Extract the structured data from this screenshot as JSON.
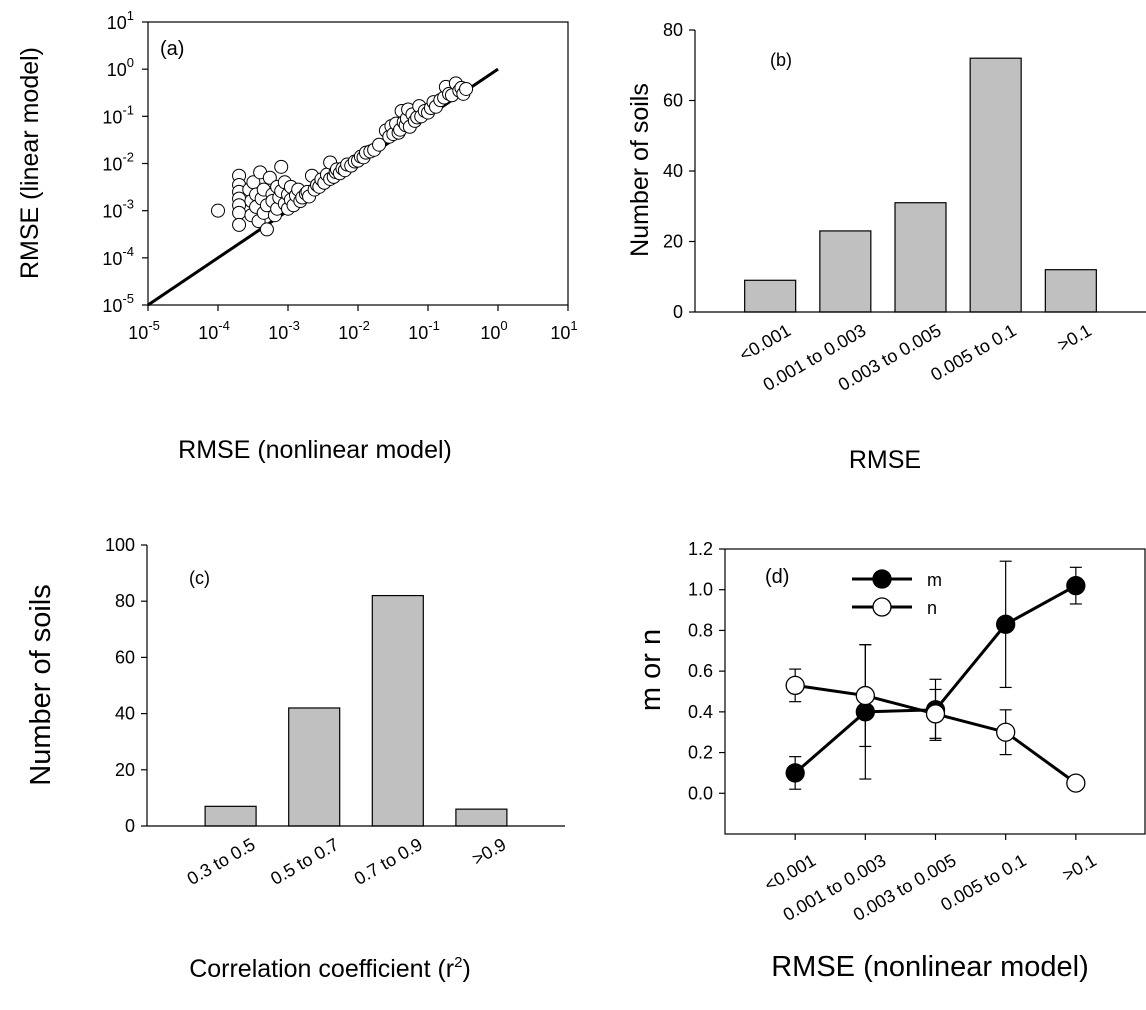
{
  "figure": {
    "panels": [
      "(a)",
      "(b)",
      "(c)",
      "(d)"
    ]
  },
  "chart_data": [
    {
      "id": "a",
      "type": "scatter",
      "panel_label": "(a)",
      "xlabel": "RMSE (nonlinear model)",
      "ylabel": "RMSE (linear model)",
      "x_scale": "log",
      "y_scale": "log",
      "xlim": [
        1e-05,
        10
      ],
      "ylim": [
        1e-05,
        10
      ],
      "tick_mantissa": "10",
      "tick_exponents": [
        "-5",
        "-4",
        "-3",
        "-2",
        "-1",
        "0",
        "1"
      ],
      "reference_line": {
        "from": [
          1e-05,
          1e-05
        ],
        "to": [
          1,
          1
        ]
      },
      "marker": "open-circle",
      "points": [
        [
          0.0001,
          0.001
        ],
        [
          0.0002,
          0.0055
        ],
        [
          0.0002,
          0.0035
        ],
        [
          0.0002,
          0.0025
        ],
        [
          0.0002,
          0.0018
        ],
        [
          0.0002,
          0.0013
        ],
        [
          0.0002,
          0.0009
        ],
        [
          0.0002,
          0.0005
        ],
        [
          0.00028,
          0.0028
        ],
        [
          0.0003,
          0.0016
        ],
        [
          0.0003,
          0.0008
        ],
        [
          0.00032,
          0.004
        ],
        [
          0.00035,
          0.0022
        ],
        [
          0.00035,
          0.0012
        ],
        [
          0.00038,
          0.0006
        ],
        [
          0.0004,
          0.0065
        ],
        [
          0.00042,
          0.0018
        ],
        [
          0.00045,
          0.0028
        ],
        [
          0.00045,
          0.0009
        ],
        [
          0.0005,
          0.0004
        ],
        [
          0.0005,
          0.0013
        ],
        [
          0.00055,
          0.005
        ],
        [
          0.0006,
          0.0022
        ],
        [
          0.0006,
          0.0016
        ],
        [
          0.00065,
          0.0008
        ],
        [
          0.0007,
          0.0032
        ],
        [
          0.0007,
          0.0011
        ],
        [
          0.00075,
          0.0019
        ],
        [
          0.0008,
          0.0085
        ],
        [
          0.0008,
          0.0026
        ],
        [
          0.0009,
          0.0014
        ],
        [
          0.0009,
          0.004
        ],
        [
          0.001,
          0.0011
        ],
        [
          0.001,
          0.0022
        ],
        [
          0.0011,
          0.0017
        ],
        [
          0.0011,
          0.0032
        ],
        [
          0.0012,
          0.0013
        ],
        [
          0.0013,
          0.0021
        ],
        [
          0.0014,
          0.0028
        ],
        [
          0.0015,
          0.0016
        ],
        [
          0.0016,
          0.0019
        ],
        [
          0.0018,
          0.0023
        ],
        [
          0.0019,
          0.0025
        ],
        [
          0.002,
          0.002
        ],
        [
          0.0022,
          0.0055
        ],
        [
          0.0024,
          0.0028
        ],
        [
          0.0026,
          0.0035
        ],
        [
          0.0028,
          0.0032
        ],
        [
          0.003,
          0.0046
        ],
        [
          0.0033,
          0.0039
        ],
        [
          0.0036,
          0.0058
        ],
        [
          0.004,
          0.0105
        ],
        [
          0.004,
          0.0047
        ],
        [
          0.0045,
          0.0052
        ],
        [
          0.0048,
          0.0066
        ],
        [
          0.005,
          0.0075
        ],
        [
          0.0055,
          0.0062
        ],
        [
          0.006,
          0.0078
        ],
        [
          0.0065,
          0.0072
        ],
        [
          0.007,
          0.0095
        ],
        [
          0.008,
          0.009
        ],
        [
          0.009,
          0.011
        ],
        [
          0.01,
          0.0115
        ],
        [
          0.011,
          0.014
        ],
        [
          0.012,
          0.0135
        ],
        [
          0.013,
          0.017
        ],
        [
          0.015,
          0.018
        ],
        [
          0.017,
          0.0195
        ],
        [
          0.02,
          0.025
        ],
        [
          0.025,
          0.05
        ],
        [
          0.028,
          0.037
        ],
        [
          0.03,
          0.062
        ],
        [
          0.032,
          0.042
        ],
        [
          0.035,
          0.07
        ],
        [
          0.038,
          0.045
        ],
        [
          0.04,
          0.052
        ],
        [
          0.042,
          0.13
        ],
        [
          0.045,
          0.075
        ],
        [
          0.048,
          0.065
        ],
        [
          0.05,
          0.09
        ],
        [
          0.052,
          0.14
        ],
        [
          0.055,
          0.06
        ],
        [
          0.06,
          0.11
        ],
        [
          0.065,
          0.08
        ],
        [
          0.07,
          0.095
        ],
        [
          0.075,
          0.165
        ],
        [
          0.08,
          0.1
        ],
        [
          0.09,
          0.13
        ],
        [
          0.1,
          0.12
        ],
        [
          0.11,
          0.15
        ],
        [
          0.12,
          0.2
        ],
        [
          0.13,
          0.16
        ],
        [
          0.15,
          0.22
        ],
        [
          0.17,
          0.25
        ],
        [
          0.18,
          0.42
        ],
        [
          0.2,
          0.3
        ],
        [
          0.22,
          0.28
        ],
        [
          0.25,
          0.5
        ],
        [
          0.28,
          0.35
        ],
        [
          0.3,
          0.4
        ],
        [
          0.32,
          0.3
        ],
        [
          0.35,
          0.38
        ]
      ]
    },
    {
      "id": "b",
      "type": "bar",
      "panel_label": "(b)",
      "xlabel": "RMSE",
      "ylabel": "Number of soils",
      "categories": [
        "<0.001",
        "0.001 to 0.003",
        "0.003 to 0.005",
        "0.005 to 0.1",
        ">0.1"
      ],
      "values": [
        9,
        23,
        31,
        72,
        12
      ],
      "ylim": [
        0,
        80
      ],
      "yticks": [
        "0",
        "20",
        "40",
        "60",
        "80"
      ],
      "bar_color": "#c0c0c0"
    },
    {
      "id": "c",
      "type": "bar",
      "panel_label": "(c)",
      "xlabel": "Correlation coefficient (r",
      "xlabel_sup": "2",
      "xlabel_end": ")",
      "ylabel": "Number of soils",
      "categories": [
        "0.3 to 0.5",
        "0.5 to 0.7",
        "0.7 to 0.9",
        ">0.9"
      ],
      "values": [
        7,
        42,
        82,
        6
      ],
      "ylim": [
        0,
        100
      ],
      "yticks": [
        "0",
        "20",
        "40",
        "60",
        "80",
        "100"
      ],
      "bar_color": "#c0c0c0"
    },
    {
      "id": "d",
      "type": "line",
      "panel_label": "(d)",
      "xlabel": "RMSE (nonlinear model)",
      "ylabel": "m or n",
      "categories": [
        "<0.001",
        "0.001 to 0.003",
        "0.003 to 0.005",
        "0.005 to 0.1",
        ">0.1"
      ],
      "ylim": [
        -0.2,
        1.2
      ],
      "yticks": [
        "0.0",
        "0.2",
        "0.4",
        "0.6",
        "0.8",
        "1.0",
        "1.2"
      ],
      "legend_position": "top-left",
      "series": [
        {
          "name": "m",
          "marker": "filled-circle",
          "values": [
            0.1,
            0.4,
            0.41,
            0.83,
            1.02
          ],
          "errors": [
            0.08,
            0.33,
            0.15,
            0.31,
            0.09
          ]
        },
        {
          "name": "n",
          "marker": "open-circle",
          "values": [
            0.53,
            0.48,
            0.39,
            0.3,
            0.05
          ],
          "errors": [
            0.08,
            0.25,
            0.12,
            0.11,
            0.0
          ]
        }
      ]
    }
  ]
}
